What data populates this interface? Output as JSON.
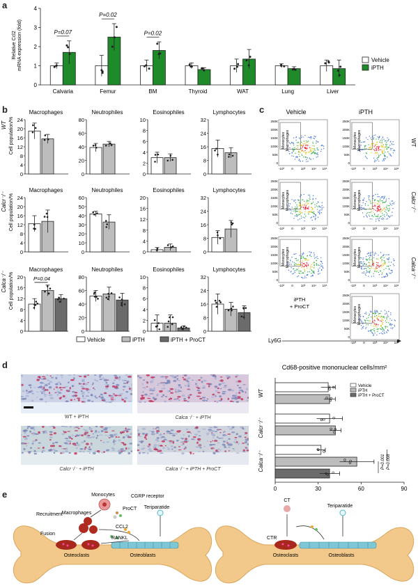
{
  "panels": {
    "a": "a",
    "b": "b",
    "c": "c",
    "d": "d",
    "e": "e"
  },
  "panel_a": {
    "ylabel_line1": "Relative Ccl2",
    "ylabel_line2": "mRNA expression (fold)",
    "legend": [
      "Vehicle",
      "iPTH"
    ],
    "pvals": [
      {
        "text": "P=0.07",
        "tissue": "Calvaria"
      },
      {
        "text": "P=0.02",
        "tissue": "Femur"
      },
      {
        "text": "P=0.02",
        "tissue": "BM"
      }
    ]
  },
  "panel_b": {
    "ylabel": "Cell population/%",
    "row_labels": [
      "WT",
      "Calcr⁻/⁻",
      "Calca⁻/⁻"
    ],
    "legend": [
      "Vehicle",
      "iPTH",
      "iPTH + ProCT"
    ],
    "pval_text": "P=0.04"
  },
  "panel_c": {
    "col_labels": [
      "Vehicle",
      "iPTH"
    ],
    "row_labels": [
      "WT",
      "Calcr⁻/⁻",
      "Calca⁻/⁻"
    ],
    "gate_label_1": "Monocytes",
    "gate_label_2": "Macrophages",
    "yticks": [
      "250K",
      "200K",
      "150K",
      "100K",
      "50K",
      "0"
    ],
    "xticks": [
      "-10³",
      "0",
      "10³",
      "10⁴",
      "10⁵"
    ],
    "xaxis": "Ly6G",
    "proct_line1": "iPTH",
    "proct_line2": "+ ProCT"
  },
  "panel_d": {
    "title": "Cd68-positive mononuclear cells/mm²",
    "image_labels": [
      "WT + iPTH",
      "Calca⁻/⁻ + iPTH",
      "Calcr⁻/⁻ + iPTH",
      "Calca⁻/⁻ + iPTH + ProCT"
    ],
    "row_labels": [
      "WT",
      "Calcr⁻/⁻",
      "Calca⁻/⁻"
    ],
    "legend": [
      "Vehicle",
      "iPTH",
      "iPTH + ProCT"
    ],
    "pvals": [
      "P=0.001",
      "P=0.008"
    ]
  },
  "panel_e": {
    "left": {
      "monocytes": "Monocytes",
      "cgrp": "CGRP receptor",
      "recruitment": "Recruitment",
      "procT": "ProCT",
      "teriparatide": "Teriparatide",
      "macrophages": "Macrophages",
      "ccl2": "CCL2",
      "rankl": "RANKL",
      "fusion": "Fusion",
      "osteoclasts": "Osteoclasts",
      "osteoblasts": "Osteoblasts"
    },
    "right": {
      "ct": "CT",
      "teriparatide": "Teriparatide",
      "ctr": "CTR",
      "osteoclasts": "Osteoclasts",
      "osteoblasts": "Osteoblasts"
    }
  },
  "colors": {
    "vehicle": "#ffffff",
    "ipth_green": "#1f8a2a",
    "ipth_grey": "#bdbdbd",
    "proct_grey": "#6b6b6b",
    "bone": "#f2c98a"
  },
  "chart_data": [
    {
      "type": "bar",
      "panel": "a",
      "categories": [
        "Calvaria",
        "Femur",
        "BM",
        "Thyroid",
        "WAT",
        "Lung",
        "Liver"
      ],
      "series": [
        {
          "name": "Vehicle",
          "values": [
            1.0,
            1.0,
            1.0,
            1.0,
            1.0,
            1.0,
            1.0
          ],
          "err": [
            0.15,
            0.55,
            0.3,
            0.15,
            0.35,
            0.1,
            0.3
          ]
        },
        {
          "name": "iPTH",
          "values": [
            1.7,
            2.5,
            1.8,
            0.8,
            1.35,
            0.85,
            0.85
          ],
          "err": [
            0.6,
            0.7,
            0.45,
            0.1,
            0.5,
            0.1,
            0.45
          ]
        }
      ],
      "yticks": [
        0,
        1,
        2,
        3,
        4
      ],
      "ylim": [
        0,
        4
      ]
    },
    {
      "type": "bar",
      "panel": "b",
      "grid": [
        [
          {
            "title": "Macrophages",
            "ylim": [
              0,
              24
            ],
            "yticks": [
              0,
              4,
              8,
              12,
              16,
              20,
              24
            ],
            "values": [
              19,
              15.5
            ],
            "err": [
              3.5,
              2
            ]
          },
          {
            "title": "Neutrophiles",
            "ylim": [
              0,
              80
            ],
            "yticks": [
              0,
              20,
              40,
              60,
              80
            ],
            "values": [
              39,
              44
            ],
            "err": [
              6,
              4
            ]
          },
          {
            "title": "Eosinophiles",
            "ylim": [
              0,
              10
            ],
            "yticks": [
              0,
              2,
              4,
              6,
              8,
              10
            ],
            "values": [
              3.0,
              3.0
            ],
            "err": [
              1.0,
              0.7
            ]
          },
          {
            "title": "Lymphocytes",
            "ylim": [
              0,
              32
            ],
            "yticks": [
              0,
              8,
              16,
              24,
              32
            ],
            "values": [
              15,
              12.5
            ],
            "err": [
              5,
              3
            ]
          }
        ],
        [
          {
            "title": "Macrophages",
            "ylim": [
              0,
              24
            ],
            "yticks": [
              0,
              4,
              8,
              12,
              16,
              20,
              24
            ],
            "values": [
              12.5,
              13.5
            ],
            "err": [
              3.5,
              5
            ]
          },
          {
            "title": "Neutrophiles",
            "ylim": [
              0,
              60
            ],
            "yticks": [
              0,
              10,
              20,
              30,
              40,
              50,
              60
            ],
            "values": [
              42,
              33
            ],
            "err": [
              3,
              8
            ]
          },
          {
            "title": "Eosinophiles",
            "ylim": [
              0,
              20
            ],
            "yticks": [
              0,
              4,
              8,
              12,
              16,
              20
            ],
            "values": [
              0.8,
              1.7
            ],
            "err": [
              0.8,
              1.2
            ]
          },
          {
            "title": "Lymphocytes",
            "ylim": [
              0,
              32
            ],
            "yticks": [
              0,
              8,
              16,
              24,
              32
            ],
            "values": [
              8.5,
              13.5
            ],
            "err": [
              4,
              5
            ]
          }
        ],
        [
          {
            "title": "Macrophages",
            "ylim": [
              0,
              20
            ],
            "yticks": [
              0,
              4,
              8,
              12,
              16,
              20
            ],
            "values": [
              10,
              15,
              12
            ],
            "err": [
              2,
              2,
              1.5
            ]
          },
          {
            "title": "Neutrophiles",
            "ylim": [
              0,
              80
            ],
            "yticks": [
              0,
              20,
              40,
              60,
              80
            ],
            "values": [
              52,
              55,
              46
            ],
            "err": [
              8,
              10,
              10
            ]
          },
          {
            "title": "Eosinophiles",
            "ylim": [
              0,
              10
            ],
            "yticks": [
              0,
              2,
              4,
              6,
              8,
              10
            ],
            "values": [
              1.5,
              1.5,
              0.6
            ],
            "err": [
              1.5,
              1.5,
              0.4
            ]
          },
          {
            "title": "Lymphocytes",
            "ylim": [
              0,
              32
            ],
            "yticks": [
              0,
              8,
              16,
              24,
              32
            ],
            "values": [
              16,
              13,
              11
            ],
            "err": [
              6,
              4,
              4
            ]
          }
        ]
      ]
    },
    {
      "type": "bar",
      "panel": "d",
      "orientation": "horizontal",
      "xticks": [
        0,
        30,
        60,
        90
      ],
      "xlim": [
        0,
        90
      ],
      "categories": [
        "WT Vehicle",
        "WT iPTH",
        "Calcr Vehicle",
        "Calcr iPTH",
        "Calca Vehicle",
        "Calca iPTH",
        "Calca iPTH + ProCT"
      ],
      "values": [
        37,
        38,
        38,
        42,
        32,
        57,
        38
      ],
      "err": [
        5,
        4,
        9,
        4,
        3,
        12,
        7
      ]
    }
  ]
}
